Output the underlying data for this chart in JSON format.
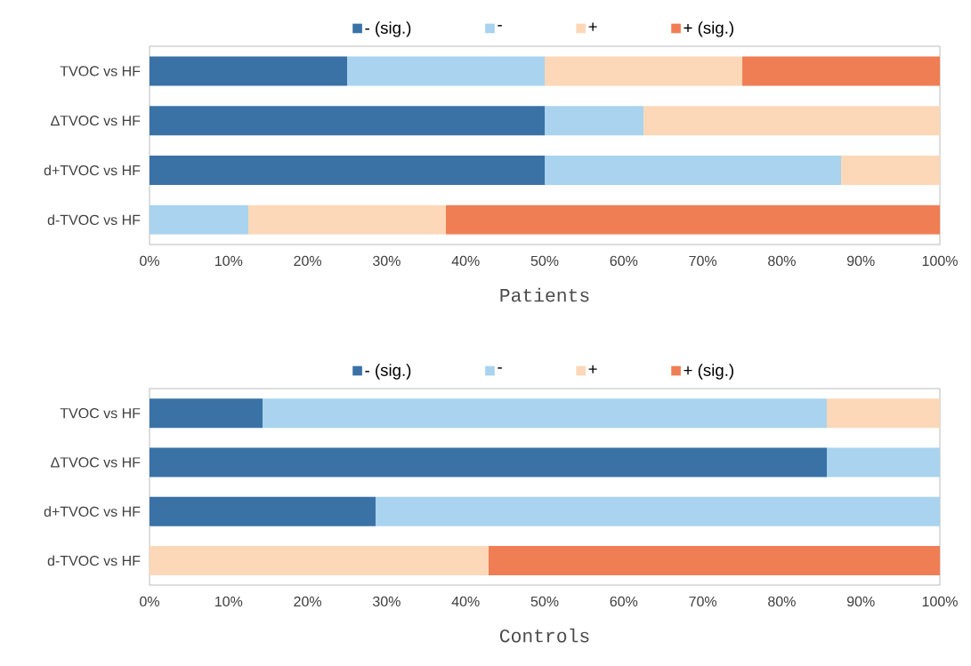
{
  "chart_data": [
    {
      "type": "bar",
      "orientation": "horizontal",
      "stacked": true,
      "title": "Patients",
      "legend": "top",
      "categories": [
        "TVOC vs HF",
        "ΔTVOC vs HF",
        "d+TVOC vs HF",
        "d-TVOC vs HF"
      ],
      "series": [
        {
          "name": "- (sig.)",
          "color": "#3a72a6",
          "values": [
            25,
            50,
            50,
            0
          ]
        },
        {
          "name": "-",
          "color": "#a9d3ee",
          "values": [
            25,
            12.5,
            37.5,
            12.5
          ]
        },
        {
          "name": "+",
          "color": "#fcd8b8",
          "values": [
            25,
            37.5,
            12.5,
            25
          ]
        },
        {
          "name": "+ (sig.)",
          "color": "#f07e54",
          "values": [
            25,
            0,
            0,
            62.5
          ]
        }
      ],
      "xlim": [
        0,
        100
      ],
      "xticks": [
        {
          "value": 0,
          "label": "0%"
        },
        {
          "value": 10,
          "label": "10%"
        },
        {
          "value": 20,
          "label": "20%"
        },
        {
          "value": 30,
          "label": "30%"
        },
        {
          "value": 40,
          "label": "40%"
        },
        {
          "value": 50,
          "label": "50%"
        },
        {
          "value": 60,
          "label": "60%"
        },
        {
          "value": 70,
          "label": "70%"
        },
        {
          "value": 80,
          "label": "80%"
        },
        {
          "value": 90,
          "label": "90%"
        },
        {
          "value": 100,
          "label": "100%"
        }
      ],
      "grid": false
    },
    {
      "type": "bar",
      "orientation": "horizontal",
      "stacked": true,
      "title": "Controls",
      "legend": "top",
      "categories": [
        "TVOC vs HF",
        "ΔTVOC vs HF",
        "d+TVOC vs HF",
        "d-TVOC vs HF"
      ],
      "series": [
        {
          "name": "- (sig.)",
          "color": "#3a72a6",
          "values": [
            14.3,
            85.7,
            28.6,
            0
          ]
        },
        {
          "name": "-",
          "color": "#a9d3ee",
          "values": [
            71.4,
            14.3,
            71.4,
            0
          ]
        },
        {
          "name": "+",
          "color": "#fcd8b8",
          "values": [
            14.3,
            0,
            0,
            42.9
          ]
        },
        {
          "name": "+ (sig.)",
          "color": "#f07e54",
          "values": [
            0,
            0,
            0,
            57.1
          ]
        }
      ],
      "xlim": [
        0,
        100
      ],
      "xticks": [
        {
          "value": 0,
          "label": "0%"
        },
        {
          "value": 10,
          "label": "10%"
        },
        {
          "value": 20,
          "label": "20%"
        },
        {
          "value": 30,
          "label": "30%"
        },
        {
          "value": 40,
          "label": "40%"
        },
        {
          "value": 50,
          "label": "50%"
        },
        {
          "value": 60,
          "label": "60%"
        },
        {
          "value": 70,
          "label": "70%"
        },
        {
          "value": 80,
          "label": "80%"
        },
        {
          "value": 90,
          "label": "90%"
        },
        {
          "value": 100,
          "label": "100%"
        }
      ],
      "grid": false
    }
  ]
}
